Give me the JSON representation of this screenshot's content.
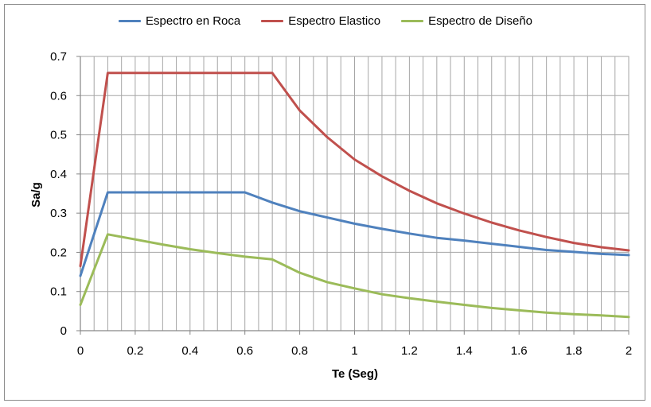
{
  "chart_data": {
    "type": "line",
    "xlabel": "Te (Seg)",
    "ylabel": "Sa/g",
    "xlim": [
      0,
      2
    ],
    "ylim": [
      0,
      0.7
    ],
    "x_ticks": [
      "0",
      "0.2",
      "0.4",
      "0.6",
      "0.8",
      "1",
      "1.2",
      "1.4",
      "1.6",
      "1.8",
      "2"
    ],
    "y_ticks": [
      "0",
      "0.1",
      "0.2",
      "0.3",
      "0.4",
      "0.5",
      "0.6",
      "0.7"
    ],
    "grid": true,
    "legend_position": "top",
    "series": [
      {
        "name": "Espectro en Roca",
        "color": "#4f81bd",
        "x": [
          0,
          0.1,
          0.2,
          0.3,
          0.4,
          0.5,
          0.6,
          0.7,
          0.8,
          0.9,
          1.0,
          1.1,
          1.2,
          1.3,
          1.4,
          1.5,
          1.6,
          1.7,
          1.8,
          1.9,
          2.0
        ],
        "y": [
          0.14,
          0.353,
          0.353,
          0.353,
          0.353,
          0.353,
          0.353,
          0.327,
          0.305,
          0.289,
          0.273,
          0.26,
          0.248,
          0.237,
          0.23,
          0.222,
          0.214,
          0.206,
          0.201,
          0.196,
          0.193
        ]
      },
      {
        "name": "Espectro Elastico",
        "color": "#c0504d",
        "x": [
          0,
          0.1,
          0.2,
          0.3,
          0.4,
          0.5,
          0.6,
          0.7,
          0.8,
          0.9,
          1.0,
          1.1,
          1.2,
          1.3,
          1.4,
          1.5,
          1.6,
          1.7,
          1.8,
          1.9,
          2.0
        ],
        "y": [
          0.165,
          0.658,
          0.658,
          0.658,
          0.658,
          0.658,
          0.658,
          0.658,
          0.562,
          0.494,
          0.437,
          0.394,
          0.357,
          0.325,
          0.299,
          0.276,
          0.256,
          0.239,
          0.224,
          0.213,
          0.205
        ]
      },
      {
        "name": "Espectro de Diseño",
        "color": "#9bbb59",
        "x": [
          0,
          0.1,
          0.2,
          0.3,
          0.4,
          0.5,
          0.6,
          0.7,
          0.8,
          0.9,
          1.0,
          1.1,
          1.2,
          1.3,
          1.4,
          1.5,
          1.6,
          1.7,
          1.8,
          1.9,
          2.0
        ],
        "y": [
          0.066,
          0.246,
          0.233,
          0.22,
          0.208,
          0.198,
          0.189,
          0.182,
          0.148,
          0.124,
          0.108,
          0.093,
          0.083,
          0.074,
          0.066,
          0.058,
          0.052,
          0.046,
          0.042,
          0.039,
          0.035
        ]
      }
    ]
  }
}
